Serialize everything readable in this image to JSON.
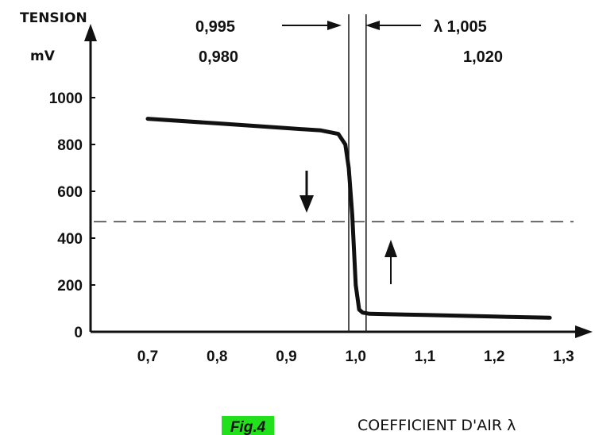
{
  "chart_data": {
    "type": "line",
    "ylabel_line1": "TENSION",
    "ylabel_line2": "mV",
    "xlabel": "COEFFICIENT D'AIR λ",
    "y_ticks": [
      "0",
      "200",
      "400",
      "600",
      "800",
      "1000"
    ],
    "y_tick_values": [
      0,
      200,
      400,
      600,
      800,
      1000
    ],
    "x_ticks": [
      "0,7",
      "0,8",
      "0,9",
      "1,0",
      "1,1",
      "1,2",
      "1,3"
    ],
    "x_tick_values": [
      0.7,
      0.8,
      0.9,
      1.0,
      1.1,
      1.2,
      1.3
    ],
    "xlim": [
      0.6,
      1.35
    ],
    "ylim": [
      0,
      1000
    ],
    "grid": false,
    "series": [
      {
        "x": [
          0.7,
          0.8,
          0.9,
          0.95,
          0.975,
          0.985,
          0.99,
          0.995,
          1.0,
          1.005,
          1.01,
          1.02,
          1.05,
          1.1,
          1.2,
          1.28
        ],
        "y": [
          910,
          890,
          870,
          860,
          845,
          800,
          700,
          500,
          200,
          95,
          82,
          77,
          75,
          72,
          65,
          60
        ]
      }
    ],
    "threshold_y": 470,
    "vertical_markers": [
      0.99,
      1.015
    ],
    "annotations": {
      "left_top": "0,995",
      "left_bottom": "0,980",
      "right_top": "λ 1,005",
      "right_bottom": "1,020"
    }
  },
  "caption": "Fig.4"
}
